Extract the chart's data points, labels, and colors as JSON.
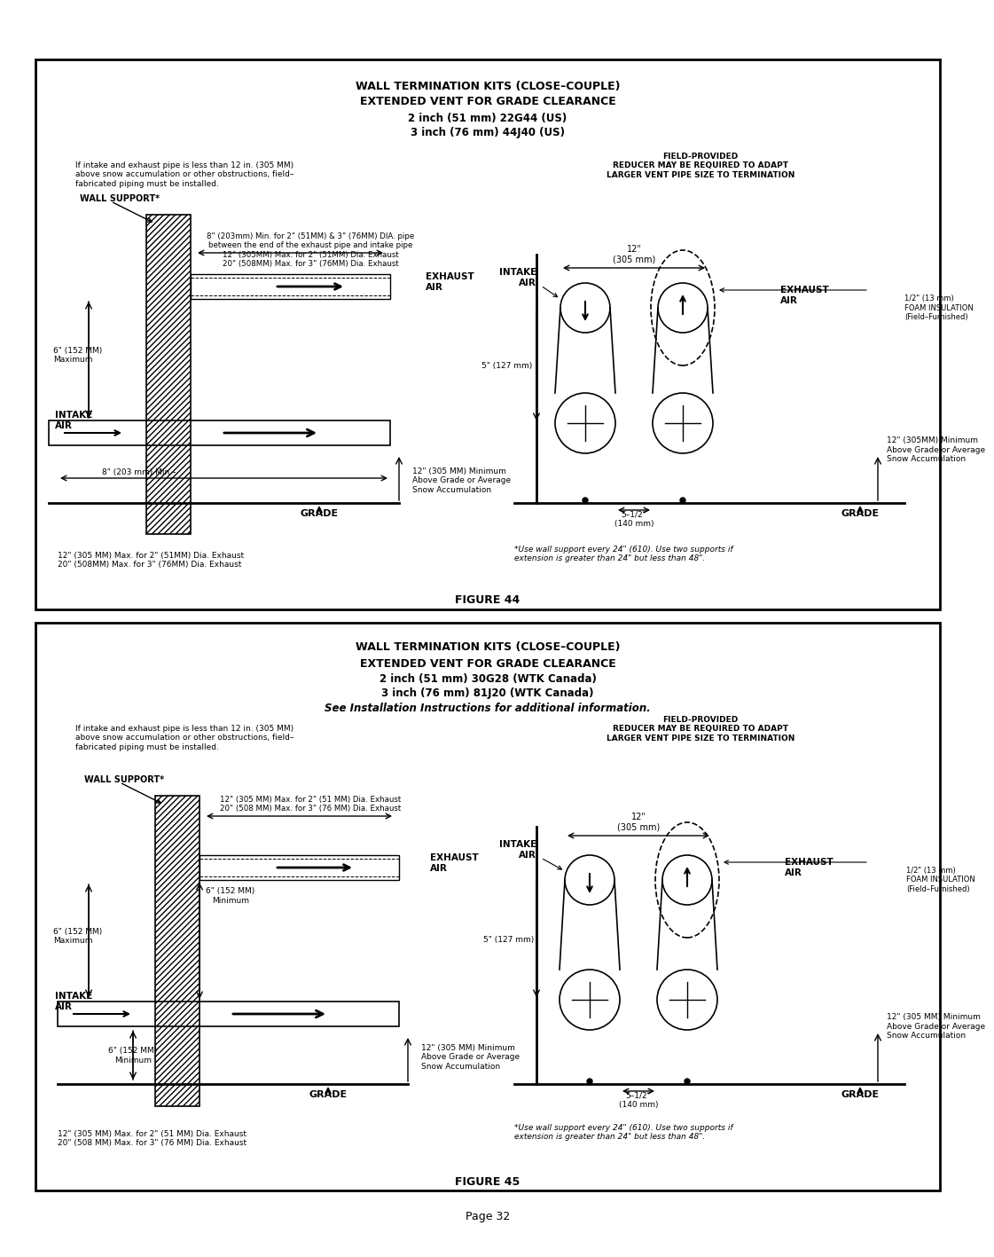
{
  "page_bg": "#ffffff",
  "border_color": "#000000",
  "text_color": "#000000",
  "page_number": "Page 32",
  "fig1": {
    "title_line1": "WALL TERMINATION KITS (CLOSE–COUPLE)",
    "title_line2": "EXTENDED VENT FOR GRADE CLEARANCE",
    "title_line3": "2 inch (51 mm) 22G44 (US)",
    "title_line4": "3 inch (76 mm) 44J40 (US)",
    "caption": "FIGURE 44",
    "left_note": "If intake and exhaust pipe is less than 12 in. (305 MM)\nabove snow accumulation or other obstructions, field–\nfabricated piping must be installed.",
    "right_note": "FIELD-PROVIDED\nREDUCER MAY BE REQUIRED TO ADAPT\nLARGER VENT PIPE SIZE TO TERMINATION",
    "wall_support": "WALL SUPPORT*",
    "dim1": "8\" (203mm) Min. for 2\" (51MM) & 3\" (76MM) DIA. pipe\nbetween the end of the exhaust pipe and intake pipe\n12\" (305MM) Max. for 2\" (51MM) Dia. Exhaust\n20\" (508MM) Max. for 3\" (76MM) Dia. Exhaust",
    "exhaust_air_label": "EXHAUST\nAIR",
    "intake_air_label": "INTAKE\nAIR",
    "six_inch": "6\" (152 MM)\nMaximum",
    "eight_min": "8\" (203 mm) Min.–",
    "twelve_min": "12\" (305 MM) Minimum\nAbove Grade or Average\nSnow Accumulation",
    "grade_label": "GRADE",
    "bottom_note": "12\" (305 MM) Max. for 2\" (51MM) Dia. Exhaust\n20\" (508MM) Max. for 3\" (76MM) Dia. Exhaust",
    "right_twelve": "12\"\n(305 mm)",
    "five_127": "5\" (127 mm)",
    "five_half": "5–1/2\"\n(140 mm)",
    "right_twelve_min": "12\" (305MM) Minimum\nAbove Grade or Average\nSnow Accumulation",
    "foam_label": "1/2\" (13 mm)\nFOAM INSULATION\n(Field–Furnished)",
    "right_intake": "INTAKE\nAIR",
    "right_exhaust": "EXHAUST\nAIR",
    "wall_note": "*Use wall support every 24\" (610). Use two supports if\nextension is greater than 24\" but less than 48\"."
  },
  "fig2": {
    "title_line1": "WALL TERMINATION KITS (CLOSE–COUPLE)",
    "title_line2": "EXTENDED VENT FOR GRADE CLEARANCE",
    "title_line3": "2 inch (51 mm) 30G28 (WTK Canada)",
    "title_line4": "3 inch (76 mm) 81J20 (WTK Canada)",
    "title_line5": "See Installation Instructions for additional information.",
    "caption": "FIGURE 45",
    "left_note": "If intake and exhaust pipe is less than 12 in. (305 MM)\nabove snow accumulation or other obstructions, field–\nfabricated piping must be installed.",
    "right_note": "FIELD-PROVIDED\nREDUCER MAY BE REQUIRED TO ADAPT\nLARGER VENT PIPE SIZE TO TERMINATION",
    "wall_support": "WALL SUPPORT*",
    "dim1": "12\" (305 MM) Max. for 2\" (51 MM) Dia. Exhaust\n20\" (508 MM) Max. for 3\" (76 MM) Dia. Exhaust",
    "exhaust_air_label": "EXHAUST\nAIR",
    "intake_air_label": "INTAKE\nAIR",
    "six_inch": "6\" (152 MM)\nMaximum",
    "six_min": "6\" (152 MM)\nMinimum",
    "six_min2": "6\" (152 MM)\nMinimum",
    "twelve_min": "12\" (305 MM) Minimum\nAbove Grade or Average\nSnow Accumulation",
    "grade_label": "GRADE",
    "bottom_note": "12\" (305 MM) Max. for 2\" (51 MM) Dia. Exhaust\n20\" (508 MM) Max. for 3\" (76 MM) Dia. Exhaust",
    "right_twelve": "12\"\n(305 mm)",
    "five_127": "5\" (127 mm)",
    "five_half": "5–1/2\"\n(140 mm)",
    "right_twelve_min": "12\" (305 MM) Minimum\nAbove Grade or Average\nSnow Accumulation",
    "foam_label": "1/2\" (13 mm)\nFOAM INSULATION\n(Field–Furnished)",
    "right_intake": "INTAKE\nAIR",
    "right_exhaust": "EXHAUST\nAIR",
    "wall_note": "*Use wall support every 24\" (610). Use two supports if\nextension is greater than 24\" but less than 48\"."
  }
}
